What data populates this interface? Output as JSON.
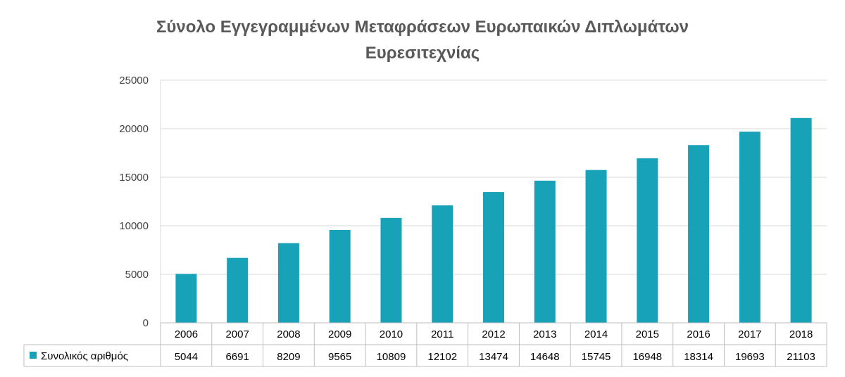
{
  "chart_data": {
    "type": "bar",
    "title": "Σύνολο Εγγεγραμμένων Μεταφράσεων Ευρωπαικών Διπλωμάτων Ευρεσιτεχνίας",
    "title_lines": [
      "Σύνολο Εγγεγραμμένων Μεταφράσεων Ευρωπαικών Διπλωμάτων",
      "Ευρεσιτεχνίας"
    ],
    "categories": [
      "2006",
      "2007",
      "2008",
      "2009",
      "2010",
      "2011",
      "2012",
      "2013",
      "2014",
      "2015",
      "2016",
      "2017",
      "2018"
    ],
    "series": [
      {
        "name": "Συνολικός αριθμός",
        "values": [
          5044,
          6691,
          8209,
          9565,
          10809,
          12102,
          13474,
          14648,
          15745,
          16948,
          18314,
          19693,
          21103
        ],
        "color": "#17A2B8"
      }
    ],
    "ylim": [
      0,
      25000
    ],
    "yticks": [
      0,
      5000,
      10000,
      15000,
      20000,
      25000
    ],
    "grid": true,
    "legend": "data-table",
    "xlabel": "",
    "ylabel": ""
  }
}
